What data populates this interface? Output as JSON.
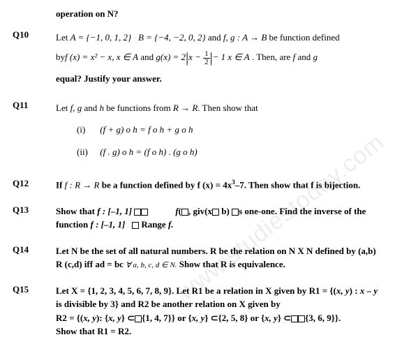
{
  "header_remnant": "operation on N?",
  "q10": {
    "num": "Q10",
    "t1": "Let ",
    "setA": "A = {−1, 0, 1, 2}",
    "gap": "   ",
    "setB": "B = {−4, −2, 0, 2}",
    "t2": " and ",
    "fg": "f, g : A → B",
    "t3": " be function defined",
    "t4": "by",
    "fdef": "f (x) = x² − x, x ∈ A",
    "t5": " and ",
    "gdef_pre": "g(x) = 2",
    "gdef_mid": "x − ",
    "gdef_half_n": "1",
    "gdef_half_d": "2",
    "gdef_post": "− 1 x ∈ A",
    "t6": " . Then, are ",
    "f": "f",
    "t7": " and ",
    "g": "g",
    "t8": "equal? Justify your answer."
  },
  "q11": {
    "num": "Q11",
    "t1": "Let ",
    "fgh": "f, g",
    "t2": " and ",
    "h": "h",
    "t3": " be functions from ",
    "rr": "R → R",
    "t4": ". Then show that",
    "i_label": "(i)",
    "i_eq": "(f + g) o h = f o h + g o h",
    "ii_label": "(ii)",
    "ii_eq": "(f . g) o h = (f o h) . (g o h)"
  },
  "q12": {
    "num": "Q12",
    "t1": "If ",
    "frr": "f : R → R",
    "t2": " be a function defined by f (x) = 4x",
    "pow": "3",
    "t3": "–7. Then show that f is bijection."
  },
  "q13": {
    "num": "Q13",
    "t1": "Show that ",
    "fdom": "f : [–1, 1] ",
    "t2": "f",
    "t3": ", giv",
    "t4": " b",
    "t5": "s one-one. Find the inverse of the function ",
    "fdom2": "f : [–1, 1] ",
    "t6": " Range ",
    "f2": "f."
  },
  "q14": {
    "num": "Q14",
    "t1": "Let N be the set of all natural numbers. R be the relation on N X N defined by (a,b) R (c,d) iff ad = bc ",
    "quant": "∀ a, b, c, d ∈ N.",
    "t2": " Show that R is equivalence."
  },
  "q15": {
    "num": "Q15",
    "t1": "Let X = {1, 2, 3, 4, 5, 6, 7, 8, 9}. Let R1 be a relation in X given by R1 = {(",
    "xy1": "x, y",
    "t2": ") : ",
    "xy2": "x – y",
    "t3": " is divisible by 3} and R2 be another relation on X given by",
    "t4": "R2 = {(",
    "xy3": "x, y",
    "t5": "): {",
    "xy4": "x, y",
    "t6": "} ⊂",
    "set1": "{1, 4, 7}} or {",
    "xy5": "x, y",
    "t7": "} ⊂{2, 5, 8} or {",
    "xy6": "x, y",
    "t8": "} ⊂",
    "set2": "{3, 6, 9}}.",
    "t9": "Show that R1 = R2."
  },
  "watermark": "www.studiestoday.com"
}
